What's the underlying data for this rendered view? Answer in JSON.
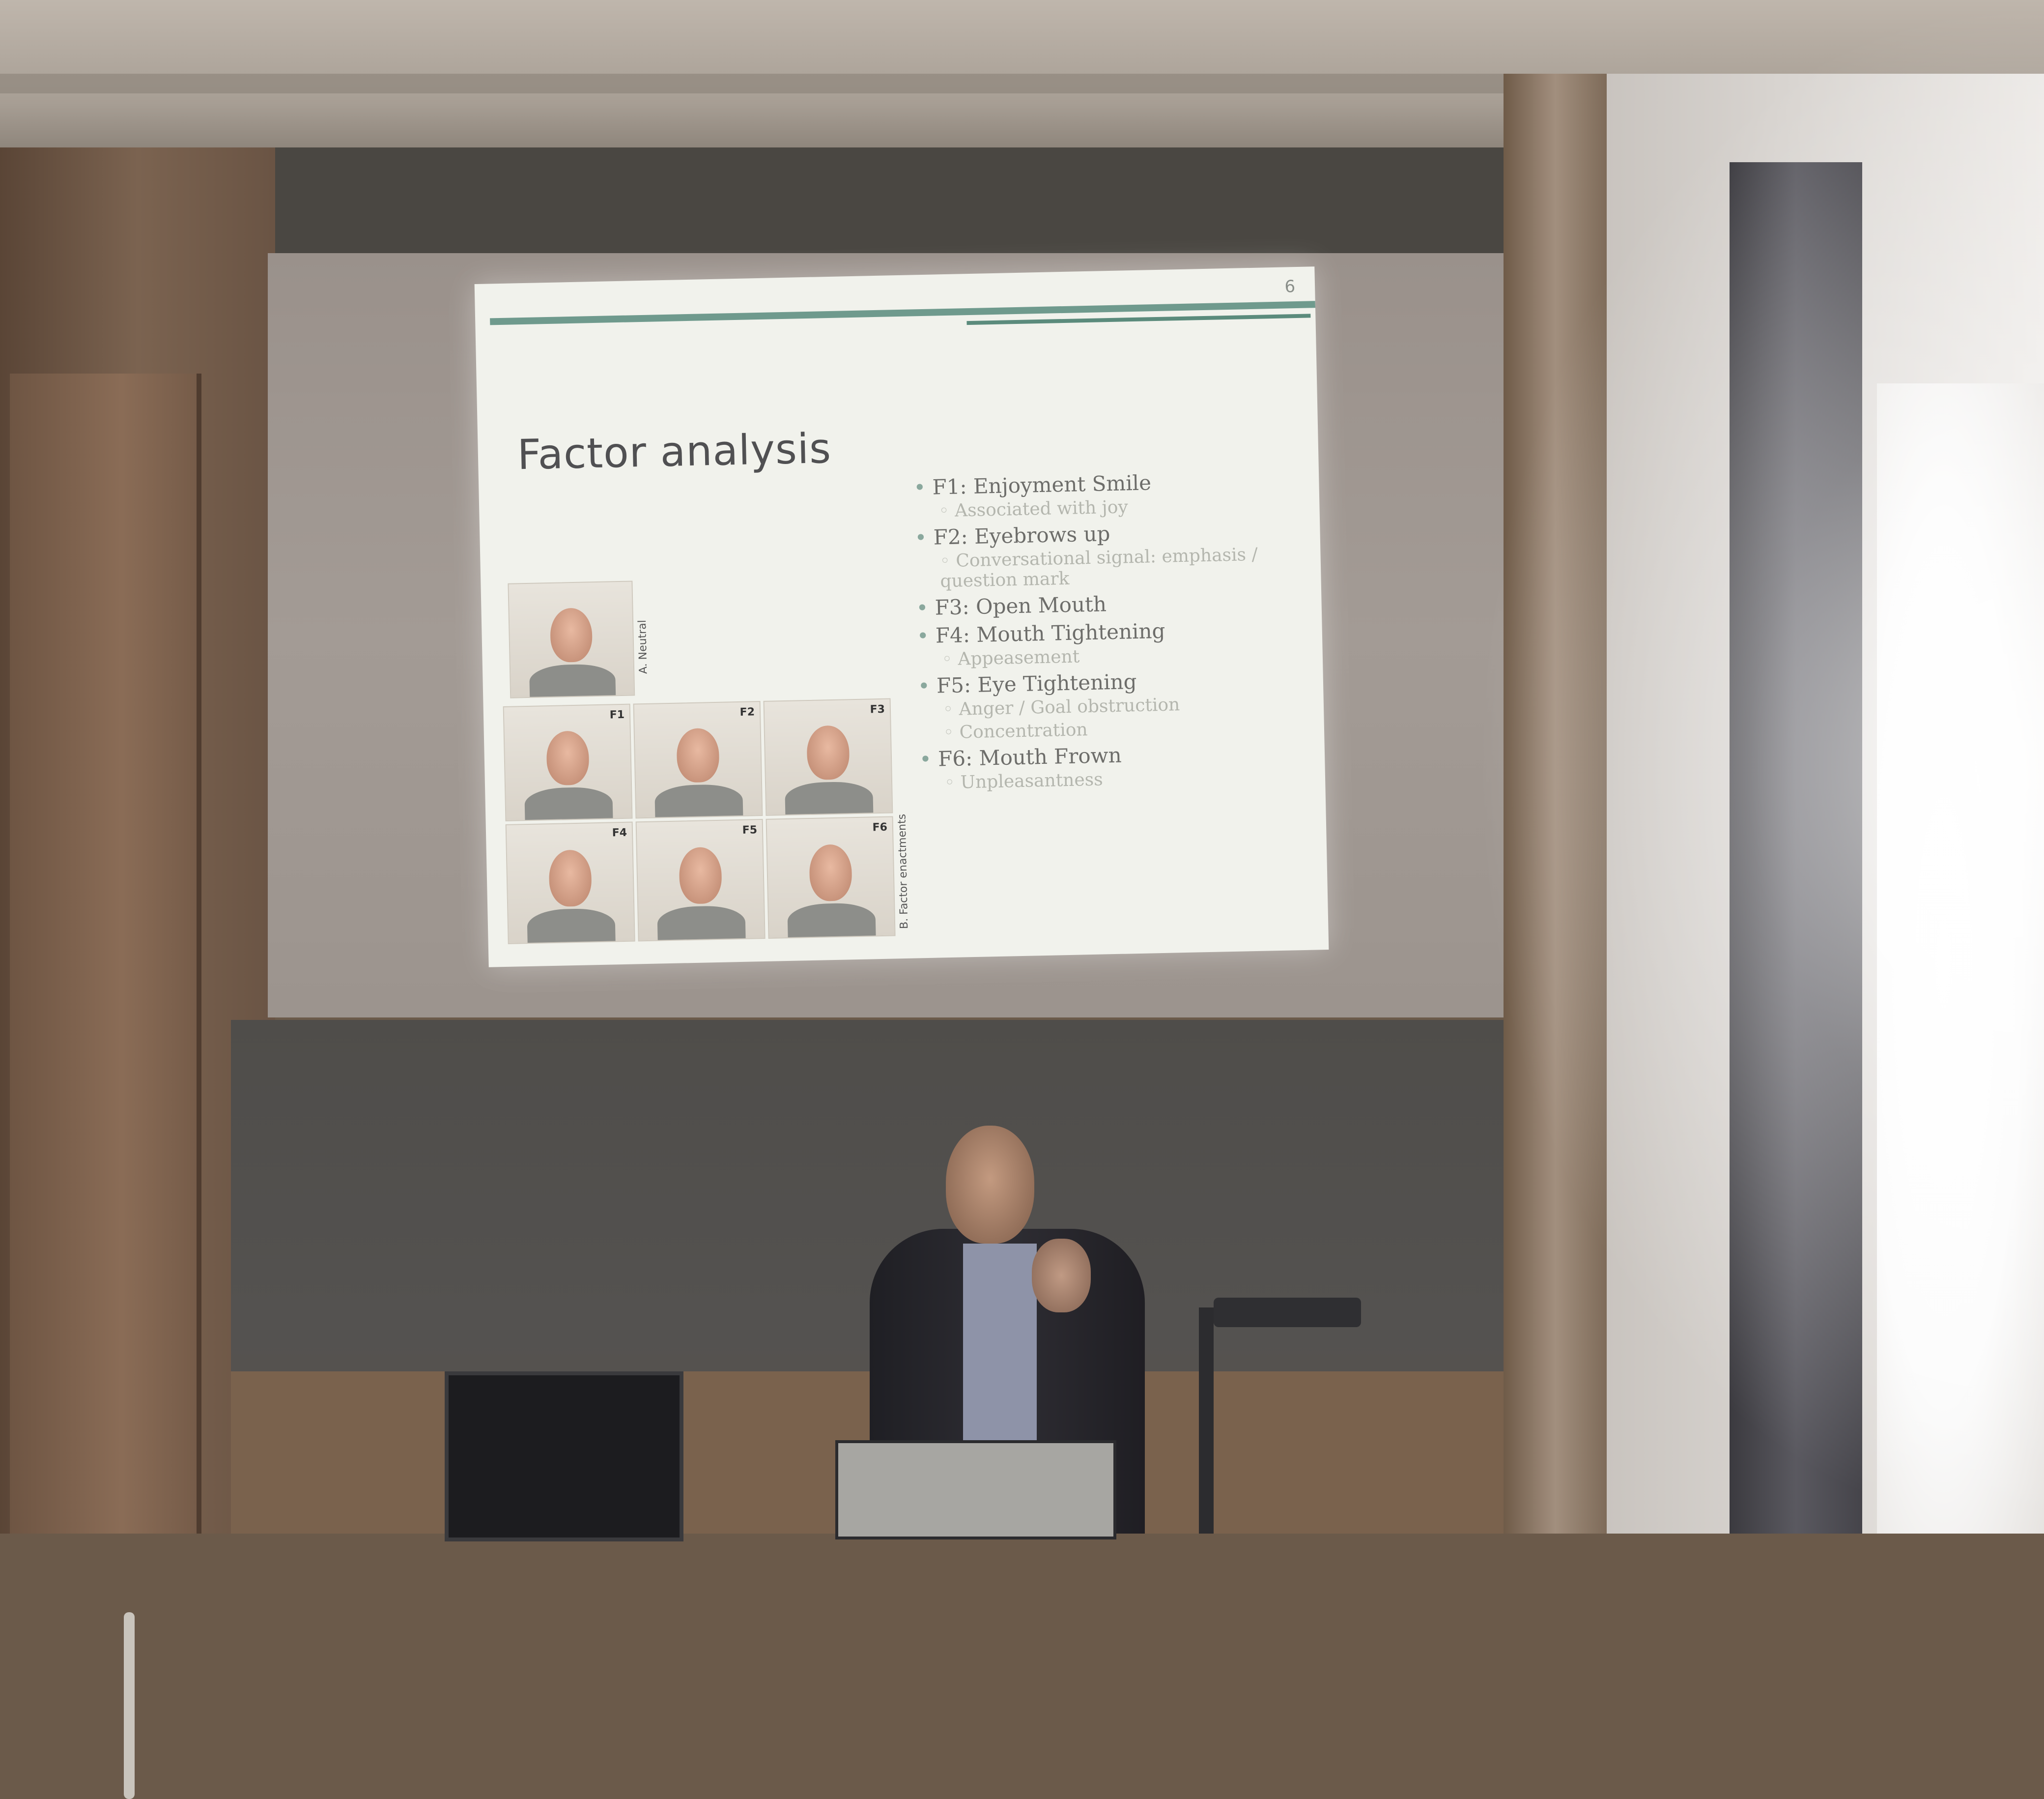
{
  "slide": {
    "number": "6",
    "title": "Factor analysis",
    "neutral_label": "A. Neutral",
    "enactments_label": "B. Factor enactments",
    "photo_labels": [
      "F1",
      "F2",
      "F3",
      "F4",
      "F5",
      "F6"
    ],
    "bullets": [
      {
        "text": "F1:  Enjoyment Smile",
        "sub": [
          "Associated with joy"
        ]
      },
      {
        "text": "F2:  Eyebrows up",
        "sub": [
          "Conversational signal: emphasis / question mark"
        ]
      },
      {
        "text": "F3: Open Mouth",
        "sub": []
      },
      {
        "text": "F4: Mouth Tightening",
        "sub": [
          "Appeasement"
        ]
      },
      {
        "text": "F5: Eye Tightening",
        "sub": [
          "Anger / Goal obstruction",
          "Concentration"
        ]
      },
      {
        "text": "F6: Mouth Frown",
        "sub": [
          "Unpleasantness"
        ]
      }
    ]
  }
}
